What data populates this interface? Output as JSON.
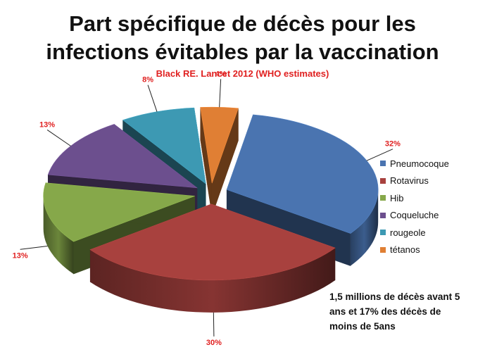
{
  "title": {
    "line1": "Part spécifique de décès pour les",
    "line2": "infections évitables par la vaccination"
  },
  "subtitle": "Black RE. Lancet 2012 (WHO estimates)",
  "note": {
    "line1": "1,5 millions de décès avant 5",
    "line2": "ans et 17% des décès de",
    "line3": "moins de 5ans"
  },
  "chart_data": {
    "type": "pie",
    "style": "3d-exploded",
    "legend_position": "right",
    "categories": [
      "Pneumocoque",
      "Rotavirus",
      "Hib",
      "Coqueluche",
      "rougeole",
      "tétanos"
    ],
    "values": [
      32,
      30,
      13,
      13,
      8,
      4
    ],
    "data_labels": [
      "32%",
      "30%",
      "13%",
      "13%",
      "8%",
      "4%"
    ],
    "colors": [
      "#4a74b0",
      "#a8413e",
      "#86a84a",
      "#6c4f8e",
      "#3d99b3",
      "#e07f34"
    ],
    "label_color": "#e02020"
  }
}
